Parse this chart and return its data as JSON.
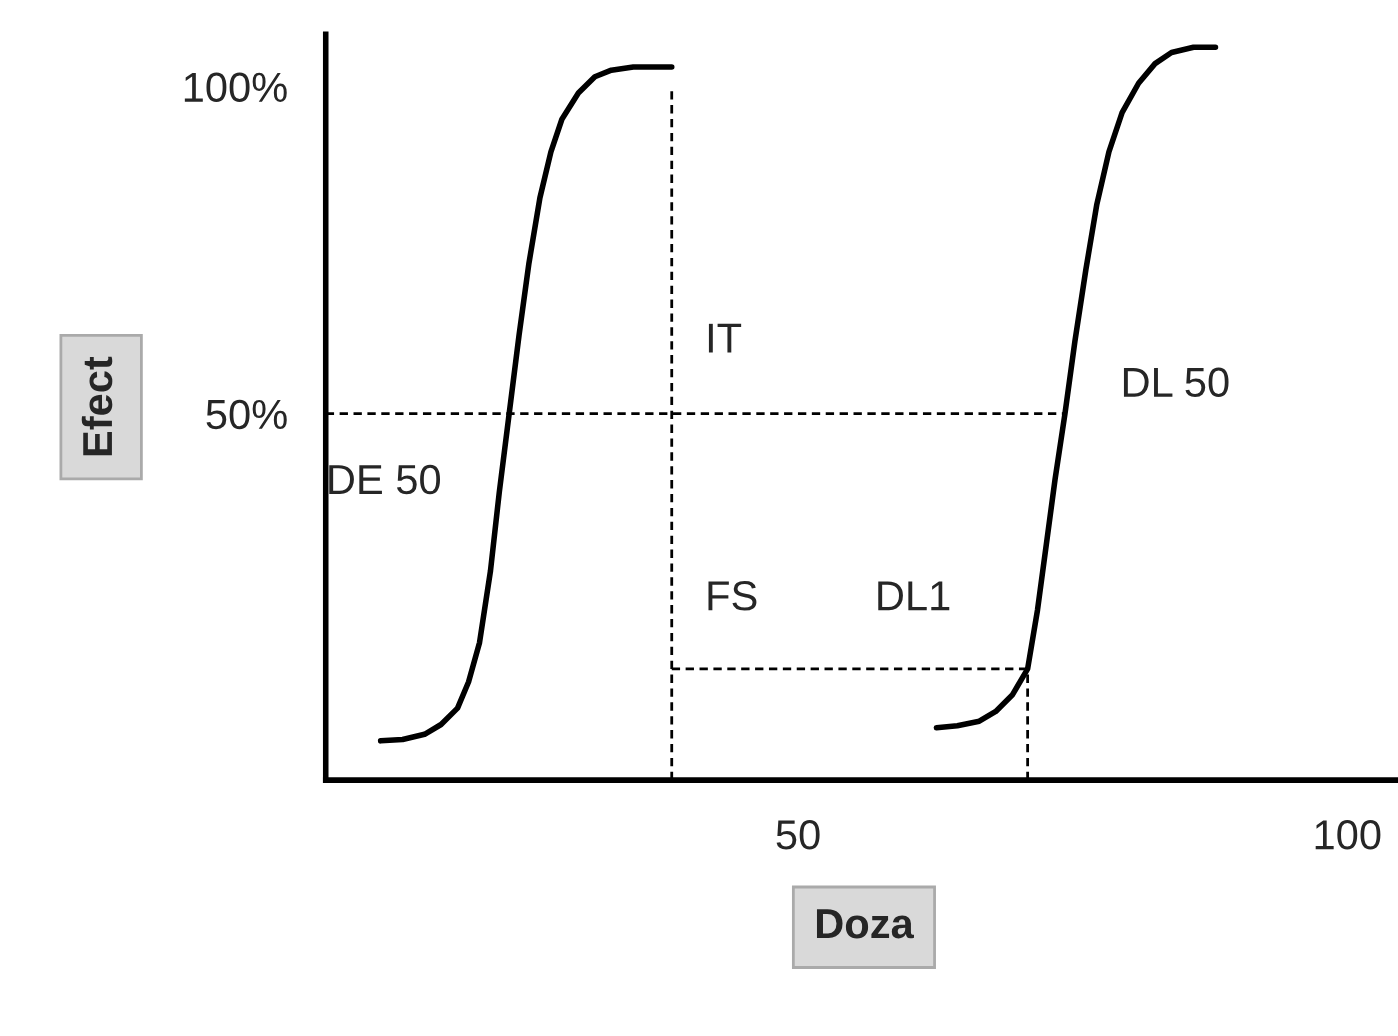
{
  "chart_data": {
    "type": "line",
    "xlabel": "Doza",
    "ylabel": "Efect",
    "xlim": [
      7,
      105
    ],
    "ylim": [
      -6,
      108
    ],
    "xticks": [
      50,
      100
    ],
    "yticks": [
      {
        "value": 50,
        "label": "50%"
      },
      {
        "value": 100,
        "label": "100%"
      }
    ],
    "grid": false,
    "legend": false,
    "marker": "none",
    "series": [
      {
        "color": "#000000",
        "line_style": "solid",
        "x": [
          12,
          14,
          16,
          17.5,
          19,
          20,
          21,
          22,
          22.8,
          23.7,
          24.6,
          25.5,
          26.5,
          27.5,
          28.5,
          30,
          31.5,
          33,
          35,
          38.5
        ],
        "values": [
          0,
          0.2,
          1,
          2.5,
          5,
          9,
          15,
          26,
          38,
          50,
          62,
          73,
          83,
          90,
          95,
          99,
          101.5,
          102.5,
          103,
          103
        ]
      },
      {
        "color": "#000000",
        "line_style": "solid",
        "x": [
          62.6,
          64.5,
          66.5,
          68,
          69.5,
          70.9,
          71.8,
          72.6,
          73.4,
          74.3,
          75.2,
          76.2,
          77.2,
          78.3,
          79.5,
          81,
          82.5,
          84,
          86,
          88
        ],
        "values": [
          2,
          2.3,
          3,
          4.5,
          7,
          11,
          20,
          30,
          40,
          50,
          61,
          72,
          82,
          90,
          96,
          100.5,
          103.5,
          105.2,
          106,
          106
        ]
      },
      {
        "color": "#000000",
        "line_style": "dashed",
        "x": [
          7,
          74.3
        ],
        "values": [
          50,
          50
        ]
      },
      {
        "color": "#000000",
        "line_style": "dashed",
        "x": [
          38.5,
          38.5
        ],
        "values": [
          -6,
          100
        ]
      },
      {
        "color": "#000000",
        "line_style": "dashed",
        "x": [
          38.5,
          70.9
        ],
        "values": [
          11,
          11
        ]
      },
      {
        "color": "#000000",
        "line_style": "dashed",
        "x": [
          70.9,
          70.9
        ],
        "values": [
          -6,
          11
        ]
      }
    ],
    "annotations": [
      {
        "text": "IT",
        "x": 38.5,
        "y": 61
      },
      {
        "text": "DL 50",
        "x": 74.3,
        "y": 50
      },
      {
        "text": "DE 50",
        "x": 23.7,
        "y": 50
      },
      {
        "text": "FS",
        "x": 38.5,
        "y": 11
      },
      {
        "text": "DL1",
        "x": 70.9,
        "y": 11
      }
    ]
  }
}
